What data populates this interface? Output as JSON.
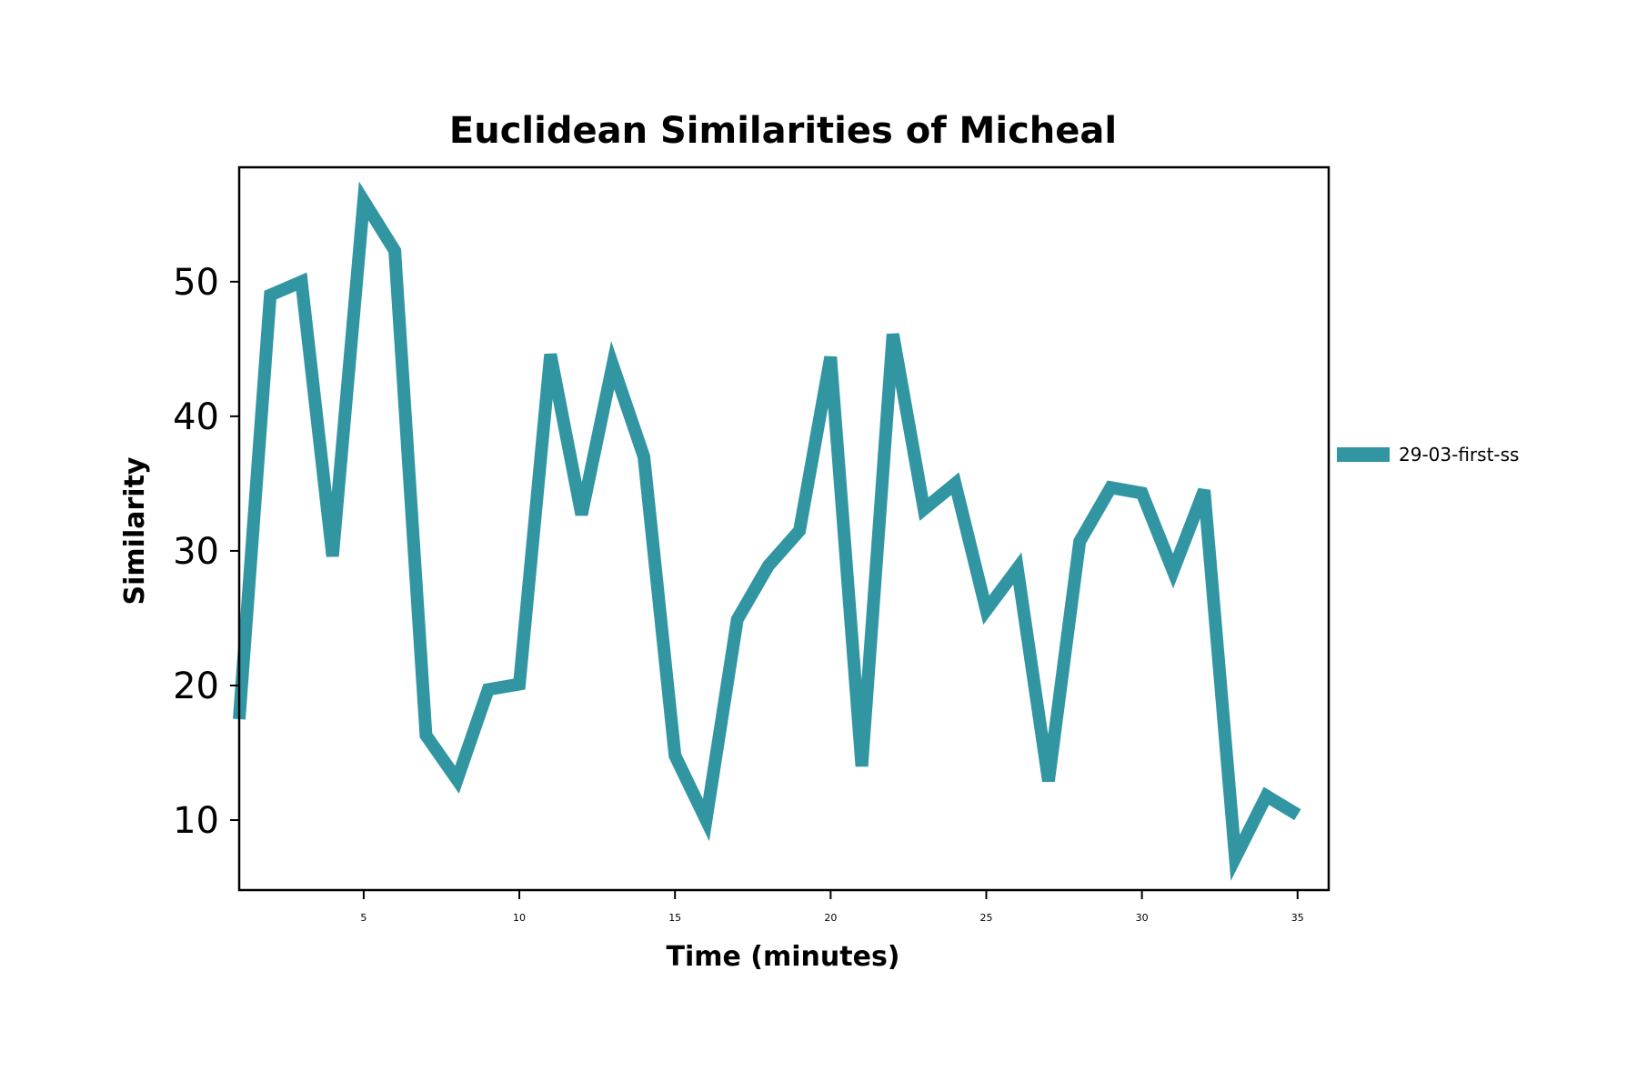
{
  "chart_data": {
    "type": "line",
    "title": "Euclidean Similarities of Micheal",
    "xlabel": "Time (minutes)",
    "ylabel": "Similarity",
    "xlim": [
      1,
      36
    ],
    "ylim": [
      4.8,
      58.5
    ],
    "xticks": [
      5,
      10,
      15,
      20,
      25,
      30,
      35
    ],
    "yticks": [
      10,
      20,
      30,
      40,
      50
    ],
    "grid": false,
    "legend_position": "outside-right",
    "series": [
      {
        "name": "29-03-first-ss",
        "color": "#3196A2",
        "x": [
          1,
          2,
          3,
          4,
          5,
          6,
          7,
          8,
          9,
          10,
          11,
          12,
          13,
          14,
          15,
          16,
          17,
          18,
          19,
          20,
          21,
          22,
          23,
          24,
          25,
          26,
          27,
          28,
          29,
          30,
          31,
          32,
          33,
          34,
          35
        ],
        "values": [
          17.5,
          49.0,
          50.0,
          29.6,
          56.0,
          52.3,
          16.3,
          13.0,
          19.7,
          20.1,
          44.6,
          32.7,
          43.8,
          37.0,
          14.8,
          10.0,
          24.9,
          28.9,
          31.5,
          44.4,
          14.0,
          46.1,
          33.1,
          35.0,
          25.6,
          28.7,
          12.9,
          30.7,
          34.7,
          34.3,
          28.5,
          34.5,
          7.2,
          11.8,
          10.4
        ]
      }
    ]
  }
}
